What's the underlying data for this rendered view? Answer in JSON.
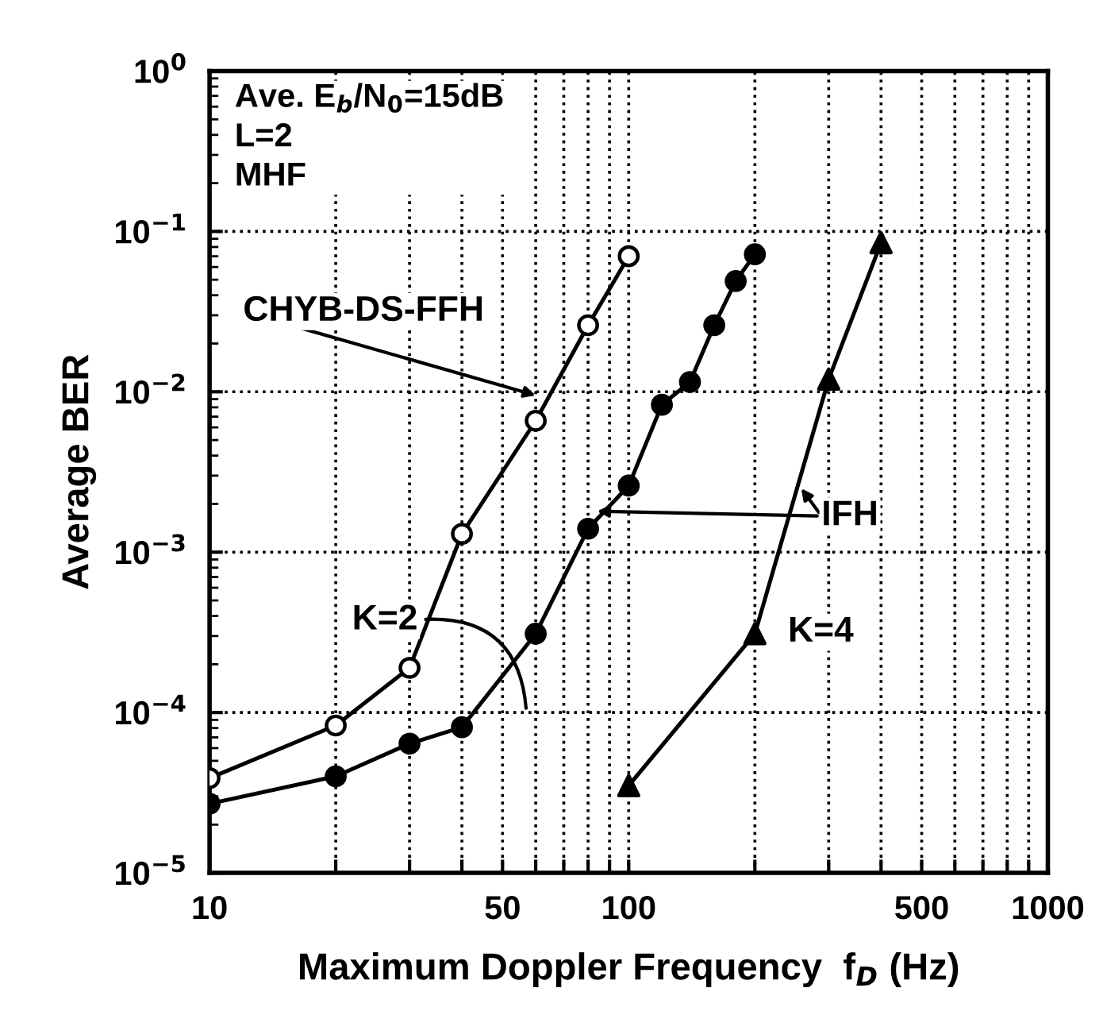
{
  "chart_data": {
    "type": "line",
    "xlabel": "Maximum Doppler Frequency  f$_{D}$ (Hz)",
    "ylabel": "Average BER",
    "log": "xy",
    "grid": true,
    "legend": false,
    "xlim": [
      10,
      1000
    ],
    "ylim": [
      1e-05,
      1
    ],
    "xticks": [
      10,
      {
        "value": 20,
        "label": null
      },
      {
        "value": 30,
        "label": null
      },
      {
        "value": 40,
        "label": null
      },
      50,
      {
        "value": 60,
        "label": null
      },
      {
        "value": 70,
        "label": null
      },
      {
        "value": 80,
        "label": null
      },
      {
        "value": 90,
        "label": null
      },
      100,
      {
        "value": 200,
        "label": null
      },
      {
        "value": 300,
        "label": null
      },
      {
        "value": 400,
        "label": null
      },
      500,
      {
        "value": 600,
        "label": null
      },
      {
        "value": 700,
        "label": null
      },
      {
        "value": 800,
        "label": null
      },
      {
        "value": 900,
        "label": null
      },
      1000
    ],
    "yticks": [
      {
        "value": 1e-05,
        "label": "10$^{−5}$"
      },
      {
        "value": 0.0001,
        "label": "10$^{−4}$"
      },
      {
        "value": 0.001,
        "label": "10$^{−3}$"
      },
      {
        "value": 0.01,
        "label": "10$^{−2}$"
      },
      {
        "value": 0.1,
        "label": "10$^{−1}$"
      },
      {
        "value": 1,
        "label": "10$^{0}$"
      }
    ],
    "series": [
      {
        "color": "#000000",
        "marker": "circle",
        "colors": [
          "#ffffff",
          "#ffffff",
          "#ffffff",
          "#ffffff",
          "#ffffff",
          "#ffffff",
          "#ffffff"
        ],
        "x": [
          10,
          20,
          30,
          40,
          60,
          80,
          100
        ],
        "values": [
          3.9e-05,
          8.3e-05,
          0.00019,
          0.0013,
          0.0066,
          0.026,
          0.07
        ]
      },
      {
        "color": "#000000",
        "marker": "circle",
        "x": [
          10,
          20,
          30,
          40,
          60,
          80,
          100,
          120,
          140,
          160,
          180,
          200
        ],
        "values": [
          2.7e-05,
          4e-05,
          6.4e-05,
          8.1e-05,
          0.00031,
          0.0014,
          0.0026,
          0.0083,
          0.0115,
          0.026,
          0.049,
          0.072
        ]
      },
      {
        "color": "#000000",
        "marker": "triangle",
        "x": [
          100,
          200,
          300,
          400
        ],
        "values": [
          3.5e-05,
          0.00031,
          0.012,
          0.085
        ]
      }
    ],
    "annotations": [
      "Ave. E$_{b}$/N$_{0}$=15dB\nL=2\nMHF",
      "CHYB-DS-FFH",
      {
        "text": "IFH",
        "x": 84,
        "y": 0.0018
      },
      "K=2",
      "K=4"
    ]
  }
}
